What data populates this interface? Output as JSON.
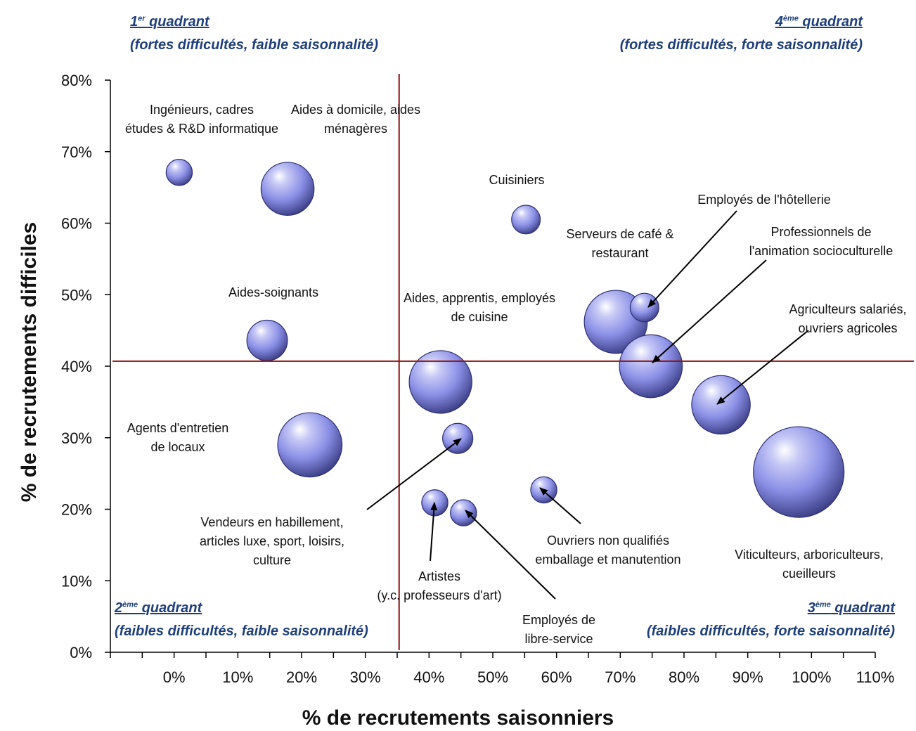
{
  "quadrants": {
    "q1": {
      "title_num": "1",
      "title_sup": "er",
      "title_rest": " quadrant",
      "desc": "(fortes difficultés, faible saisonnalité)"
    },
    "q4": {
      "title_num": "4",
      "title_sup": "ème",
      "title_rest": " quadrant",
      "desc": "(fortes difficultés, forte saisonnalité)"
    },
    "q2": {
      "title_num": "2",
      "title_sup": "ème",
      "title_rest": " quadrant",
      "desc": "(faibles difficultés, faible saisonnalité)"
    },
    "q3": {
      "title_num": "3",
      "title_sup": "ème",
      "title_rest": " quadrant",
      "desc": "(faibles difficultés, forte saisonnalité)"
    }
  },
  "chart_data": {
    "type": "bubble",
    "xlabel": "% de recrutements saisonniers",
    "ylabel": "% de recrutements difficiles",
    "xlim": [
      -10,
      110
    ],
    "ylim": [
      0,
      80
    ],
    "x_ticks": [
      "0%",
      "10%",
      "20%",
      "30%",
      "40%",
      "50%",
      "60%",
      "70%",
      "80%",
      "90%",
      "100%",
      "110%"
    ],
    "y_ticks": [
      "0%",
      "10%",
      "20%",
      "30%",
      "40%",
      "50%",
      "60%",
      "70%",
      "80%"
    ],
    "reference_lines": {
      "x": 35.3,
      "y": 40.7
    },
    "bubble_color": "#8a8fe6",
    "reference_color": "#8b1010",
    "points": [
      {
        "label": [
          "Ingénieurs, cadres",
          "études & R&D informatique"
        ],
        "x": 0.8,
        "y": 67.1,
        "size": 0.3
      },
      {
        "label": [
          "Aides à domicile, aides",
          "ménagères"
        ],
        "x": 17.8,
        "y": 64.8,
        "size": 1.23
      },
      {
        "label": [
          "Cuisiniers"
        ],
        "x": 55.2,
        "y": 60.5,
        "size": 0.36
      },
      {
        "label": [
          "Aides-soignants"
        ],
        "x": 14.6,
        "y": 43.6,
        "size": 0.72
      },
      {
        "label": [
          "Agents d'entretien",
          "de locaux"
        ],
        "x": 21.3,
        "y": 29.0,
        "size": 1.81
      },
      {
        "label": [
          "Aides, apprentis, employés",
          "de cuisine"
        ],
        "x": 41.8,
        "y": 37.8,
        "size": 1.72
      },
      {
        "label": [
          "Vendeurs en habillement,",
          "articles luxe, sport, loisirs,",
          "culture"
        ],
        "x": 44.5,
        "y": 29.9,
        "size": 0.4
      },
      {
        "label": [
          "Artistes",
          "(y.c. professeurs d'art)"
        ],
        "x": 40.9,
        "y": 20.9,
        "size": 0.3
      },
      {
        "label": [
          "Employés de",
          "libre-service"
        ],
        "x": 45.4,
        "y": 19.5,
        "size": 0.3
      },
      {
        "label": [
          "Ouvriers non qualifiés",
          "emballage et manutention"
        ],
        "x": 58.0,
        "y": 22.7,
        "size": 0.3
      },
      {
        "label": [
          "Serveurs de café &",
          "restaurant"
        ],
        "x": 69.3,
        "y": 46.2,
        "size": 1.74
      },
      {
        "label": [
          "Employés de l'hôtellerie"
        ],
        "x": 73.8,
        "y": 48.2,
        "size": 0.36
      },
      {
        "label": [
          "Professionnels de",
          "l'animation socioculturelle"
        ],
        "x": 74.8,
        "y": 40.0,
        "size": 1.73
      },
      {
        "label": [
          "Agriculteurs salariés,",
          "ouvriers agricoles"
        ],
        "x": 85.8,
        "y": 34.6,
        "size": 1.5
      },
      {
        "label": [
          "Viticulteurs, arboriculteurs,",
          "cueilleurs"
        ],
        "x": 98.0,
        "y": 25.2,
        "size": 3.6
      }
    ]
  }
}
